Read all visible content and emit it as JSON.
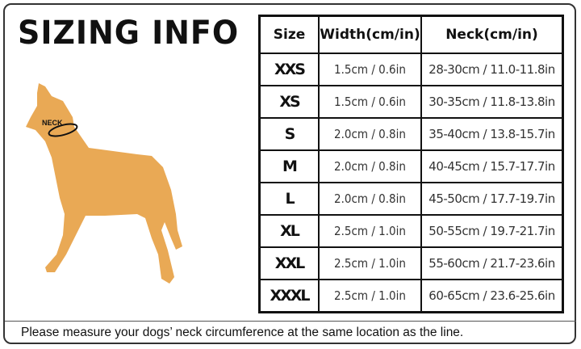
{
  "title": "SIZING INFO",
  "neck_label": "NECK",
  "colors": {
    "dog": "#E9A955",
    "border": "#111111"
  },
  "table": {
    "headers": [
      "Size",
      "Width(cm/in)",
      "Neck(cm/in)"
    ],
    "rows": [
      [
        "XXS",
        "1.5cm / 0.6in",
        "28-30cm / 11.0-11.8in"
      ],
      [
        "XS",
        "1.5cm / 0.6in",
        "30-35cm / 11.8-13.8in"
      ],
      [
        "S",
        "2.0cm / 0.8in",
        "35-40cm / 13.8-15.7in"
      ],
      [
        "M",
        "2.0cm / 0.8in",
        "40-45cm / 15.7-17.7in"
      ],
      [
        "L",
        "2.0cm / 0.8in",
        "45-50cm / 17.7-19.7in"
      ],
      [
        "XL",
        "2.5cm / 1.0in",
        "50-55cm / 19.7-21.7in"
      ],
      [
        "XXL",
        "2.5cm / 1.0in",
        "55-60cm / 21.7-23.6in"
      ],
      [
        "XXXL",
        "2.5cm / 1.0in",
        "60-65cm / 23.6-25.6in"
      ]
    ]
  },
  "footer": "Please measure your dogs’  neck circumference at the same location as the line."
}
